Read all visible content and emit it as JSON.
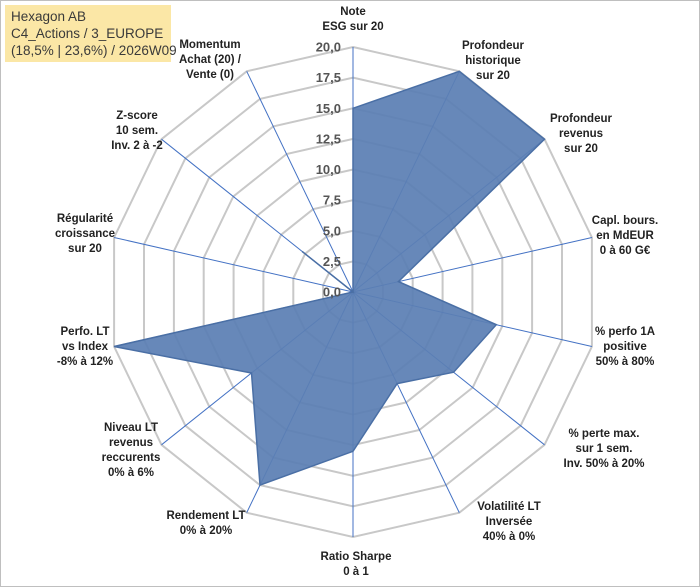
{
  "info": {
    "line1": "Hexagon AB",
    "line2": "C4_Actions / 3_EUROPE",
    "line3": "(18,5% | 23,6%) / 2026W09"
  },
  "chart_data": {
    "type": "radar",
    "title": "",
    "range": [
      0,
      20
    ],
    "step": 2.5,
    "tick_labels": [
      "0,0",
      "2,5",
      "5,0",
      "7,5",
      "10,0",
      "12,5",
      "15,0",
      "17,5",
      "20,0"
    ],
    "axes": [
      {
        "label": [
          "Note",
          "ESG sur 20"
        ],
        "value": 15
      },
      {
        "label": [
          "Profondeur",
          "historique",
          "sur 20"
        ],
        "value": 20
      },
      {
        "label": [
          "Profondeur",
          "revenus",
          "sur 20"
        ],
        "value": 20
      },
      {
        "label": [
          "Capl. bours.",
          "en MdEUR",
          "0 à 60 G€"
        ],
        "value": 3.8
      },
      {
        "label": [
          "% perfo 1A",
          "positive",
          "50% à 80%"
        ],
        "value": 12
      },
      {
        "label": [
          "% perte max.",
          "sur 1 sem.",
          "Inv. 50% à 20%"
        ],
        "value": 10.5
      },
      {
        "label": [
          "Volatilité LT",
          "Inversée",
          "40% à 0%"
        ],
        "value": 8.3
      },
      {
        "label": [
          "Ratio Sharpe",
          "0 à 1"
        ],
        "value": 13
      },
      {
        "label": [
          "Rendement LT",
          "0% à 20%"
        ],
        "value": 17.5
      },
      {
        "label": [
          "Niveau LT",
          "revenus",
          "reccurents",
          "0% à 6%"
        ],
        "value": 10.6
      },
      {
        "label": [
          "Perfo. LT",
          "vs Index",
          "-8% à 12%"
        ],
        "value": 20
      },
      {
        "label": [
          "Régularité",
          "croissance",
          "sur 20"
        ],
        "value": 0
      },
      {
        "label": [
          "Z-score",
          "10 sem.",
          "Inv. 2 à -2"
        ],
        "value": 5.3
      },
      {
        "label": [
          "Momentum",
          "Achat (20) /",
          "Vente (0)"
        ],
        "value": 0
      }
    ],
    "series": [
      {
        "name": "Hexagon AB",
        "fill": "#5b7fb4",
        "stroke": "#4a6fa5"
      }
    ],
    "grid_color": "#c8c8c8",
    "axis_color": "#4472c4"
  }
}
